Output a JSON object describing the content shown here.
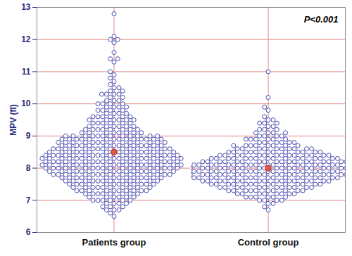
{
  "chart_data": {
    "type": "beeswarm",
    "ylabel": "MPV (fl)",
    "annotation": "P<0.001",
    "ylim": [
      6,
      13
    ],
    "yticks": [
      6,
      7,
      8,
      9,
      10,
      11,
      12,
      13
    ],
    "grid": true,
    "series": [
      {
        "name": "Patients group",
        "color": "#4b4bb0",
        "mean": 8.5,
        "values": [
          6.5,
          6.6,
          6.7,
          6.8,
          6.9,
          7.0,
          7.1,
          7.2,
          7.3,
          7.4,
          7.5,
          7.6,
          7.7,
          7.8,
          7.9,
          8.0,
          8.1,
          8.2,
          8.3,
          8.4,
          8.5,
          8.6,
          8.7,
          8.8,
          8.9,
          9.0,
          9.1,
          9.2,
          9.3,
          9.4,
          9.5,
          9.6,
          9.7,
          9.8,
          9.9,
          10.0,
          10.1,
          10.2,
          10.3,
          10.4,
          10.5,
          10.6,
          10.7,
          10.8,
          10.9,
          11.0,
          11.3,
          11.4,
          11.6,
          11.9,
          12.0,
          12.1,
          12.8
        ],
        "counts": [
          1,
          1,
          3,
          3,
          4,
          6,
          6,
          8,
          10,
          10,
          12,
          12,
          14,
          16,
          16,
          18,
          18,
          18,
          18,
          18,
          16,
          16,
          14,
          14,
          14,
          12,
          8,
          8,
          6,
          6,
          6,
          6,
          4,
          4,
          4,
          4,
          3,
          2,
          4,
          2,
          2,
          1,
          1,
          1,
          1,
          1,
          1,
          2,
          1,
          1,
          2,
          1,
          1
        ]
      },
      {
        "name": "Control group",
        "color": "#4b4bb0",
        "mean": 8.0,
        "values": [
          6.7,
          6.8,
          6.9,
          7.0,
          7.1,
          7.2,
          7.3,
          7.4,
          7.5,
          7.6,
          7.7,
          7.8,
          7.9,
          8.0,
          8.1,
          8.2,
          8.3,
          8.4,
          8.5,
          8.6,
          8.7,
          8.8,
          8.9,
          9.0,
          9.1,
          9.2,
          9.3,
          9.4,
          9.5,
          9.6,
          9.8,
          9.9,
          10.2,
          11.0
        ],
        "counts": [
          1,
          1,
          2,
          4,
          6,
          8,
          10,
          12,
          14,
          16,
          18,
          20,
          20,
          20,
          20,
          18,
          16,
          14,
          12,
          10,
          8,
          6,
          6,
          4,
          4,
          3,
          2,
          3,
          2,
          1,
          1,
          1,
          1,
          1
        ]
      }
    ]
  }
}
